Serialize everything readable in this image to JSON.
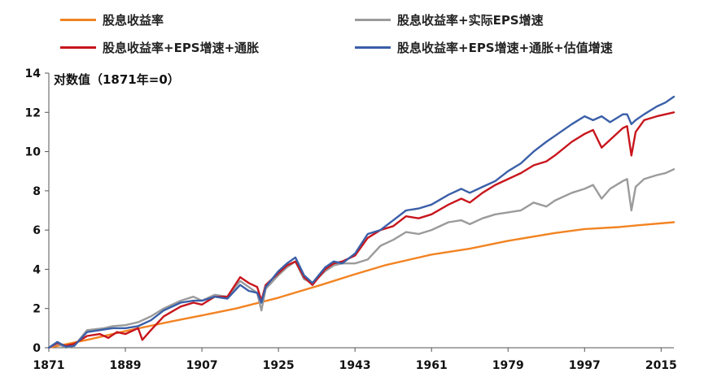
{
  "chart_data": {
    "type": "line",
    "unit_label": "对数值（1871年=0）",
    "xlim": [
      1871,
      2018
    ],
    "ylim": [
      0,
      14
    ],
    "x_ticks": [
      1871,
      1889,
      1907,
      1925,
      1943,
      1961,
      1979,
      1997,
      2015
    ],
    "y_ticks": [
      0,
      2,
      4,
      6,
      8,
      10,
      12,
      14
    ],
    "grid": false,
    "legend_position": "top",
    "series": [
      {
        "name": "股息收益率",
        "color": "#F28322",
        "points": [
          [
            1871,
            0
          ],
          [
            1880,
            0.4
          ],
          [
            1889,
            0.85
          ],
          [
            1900,
            1.35
          ],
          [
            1907,
            1.65
          ],
          [
            1915,
            2.0
          ],
          [
            1925,
            2.55
          ],
          [
            1935,
            3.2
          ],
          [
            1943,
            3.75
          ],
          [
            1950,
            4.2
          ],
          [
            1961,
            4.75
          ],
          [
            1970,
            5.05
          ],
          [
            1979,
            5.45
          ],
          [
            1990,
            5.85
          ],
          [
            1997,
            6.05
          ],
          [
            2005,
            6.15
          ],
          [
            2010,
            6.25
          ],
          [
            2018,
            6.4
          ]
        ]
      },
      {
        "name": "股息收益率+实际EPS增速",
        "color": "#9B9B9B",
        "points": [
          [
            1871,
            0
          ],
          [
            1873,
            0.2
          ],
          [
            1875,
            0.0
          ],
          [
            1877,
            0.1
          ],
          [
            1880,
            0.9
          ],
          [
            1884,
            1.0
          ],
          [
            1886,
            1.1
          ],
          [
            1889,
            1.15
          ],
          [
            1892,
            1.3
          ],
          [
            1895,
            1.6
          ],
          [
            1898,
            2.0
          ],
          [
            1902,
            2.4
          ],
          [
            1905,
            2.6
          ],
          [
            1907,
            2.4
          ],
          [
            1910,
            2.7
          ],
          [
            1913,
            2.6
          ],
          [
            1916,
            3.4
          ],
          [
            1918,
            3.1
          ],
          [
            1920,
            2.8
          ],
          [
            1921,
            1.9
          ],
          [
            1922,
            3.0
          ],
          [
            1925,
            3.7
          ],
          [
            1927,
            4.1
          ],
          [
            1929,
            4.4
          ],
          [
            1931,
            3.5
          ],
          [
            1933,
            3.3
          ],
          [
            1936,
            3.9
          ],
          [
            1938,
            4.2
          ],
          [
            1940,
            4.3
          ],
          [
            1943,
            4.3
          ],
          [
            1946,
            4.5
          ],
          [
            1949,
            5.2
          ],
          [
            1952,
            5.5
          ],
          [
            1955,
            5.9
          ],
          [
            1958,
            5.8
          ],
          [
            1961,
            6.0
          ],
          [
            1965,
            6.4
          ],
          [
            1968,
            6.5
          ],
          [
            1970,
            6.3
          ],
          [
            1973,
            6.6
          ],
          [
            1976,
            6.8
          ],
          [
            1979,
            6.9
          ],
          [
            1982,
            7.0
          ],
          [
            1985,
            7.4
          ],
          [
            1988,
            7.2
          ],
          [
            1990,
            7.5
          ],
          [
            1994,
            7.9
          ],
          [
            1997,
            8.1
          ],
          [
            1999,
            8.3
          ],
          [
            2001,
            7.6
          ],
          [
            2003,
            8.1
          ],
          [
            2006,
            8.5
          ],
          [
            2007,
            8.6
          ],
          [
            2008,
            7.0
          ],
          [
            2009,
            8.2
          ],
          [
            2011,
            8.6
          ],
          [
            2014,
            8.8
          ],
          [
            2016,
            8.9
          ],
          [
            2018,
            9.1
          ]
        ]
      },
      {
        "name": "股息收益率+EPS增速+通胀",
        "color": "#C8161D",
        "points": [
          [
            1871,
            0
          ],
          [
            1873,
            0.25
          ],
          [
            1875,
            0.1
          ],
          [
            1877,
            0.2
          ],
          [
            1880,
            0.6
          ],
          [
            1883,
            0.7
          ],
          [
            1885,
            0.5
          ],
          [
            1887,
            0.8
          ],
          [
            1889,
            0.7
          ],
          [
            1892,
            1.0
          ],
          [
            1893,
            0.4
          ],
          [
            1895,
            0.9
          ],
          [
            1898,
            1.6
          ],
          [
            1902,
            2.1
          ],
          [
            1905,
            2.3
          ],
          [
            1907,
            2.2
          ],
          [
            1910,
            2.6
          ],
          [
            1913,
            2.6
          ],
          [
            1916,
            3.6
          ],
          [
            1918,
            3.3
          ],
          [
            1920,
            3.1
          ],
          [
            1921,
            2.4
          ],
          [
            1922,
            3.2
          ],
          [
            1925,
            3.8
          ],
          [
            1927,
            4.2
          ],
          [
            1929,
            4.4
          ],
          [
            1931,
            3.6
          ],
          [
            1933,
            3.2
          ],
          [
            1936,
            4.0
          ],
          [
            1938,
            4.3
          ],
          [
            1940,
            4.4
          ],
          [
            1943,
            4.7
          ],
          [
            1946,
            5.6
          ],
          [
            1949,
            6.0
          ],
          [
            1952,
            6.2
          ],
          [
            1955,
            6.7
          ],
          [
            1958,
            6.6
          ],
          [
            1961,
            6.8
          ],
          [
            1965,
            7.3
          ],
          [
            1968,
            7.6
          ],
          [
            1970,
            7.4
          ],
          [
            1973,
            7.9
          ],
          [
            1976,
            8.3
          ],
          [
            1979,
            8.6
          ],
          [
            1982,
            8.9
          ],
          [
            1985,
            9.3
          ],
          [
            1988,
            9.5
          ],
          [
            1990,
            9.8
          ],
          [
            1994,
            10.5
          ],
          [
            1997,
            10.9
          ],
          [
            1999,
            11.1
          ],
          [
            2001,
            10.2
          ],
          [
            2003,
            10.6
          ],
          [
            2006,
            11.2
          ],
          [
            2007,
            11.3
          ],
          [
            2008,
            9.8
          ],
          [
            2009,
            11.0
          ],
          [
            2011,
            11.6
          ],
          [
            2014,
            11.8
          ],
          [
            2016,
            11.9
          ],
          [
            2018,
            12.0
          ]
        ]
      },
      {
        "name": "股息收益率+EPS增速+通胀+估值增速",
        "color": "#3A5FA8",
        "points": [
          [
            1871,
            0
          ],
          [
            1873,
            0.3
          ],
          [
            1875,
            0.05
          ],
          [
            1877,
            0.1
          ],
          [
            1880,
            0.8
          ],
          [
            1883,
            0.9
          ],
          [
            1886,
            1.0
          ],
          [
            1889,
            1.0
          ],
          [
            1892,
            1.1
          ],
          [
            1895,
            1.4
          ],
          [
            1898,
            1.9
          ],
          [
            1902,
            2.3
          ],
          [
            1905,
            2.4
          ],
          [
            1907,
            2.4
          ],
          [
            1910,
            2.6
          ],
          [
            1913,
            2.5
          ],
          [
            1916,
            3.2
          ],
          [
            1918,
            2.9
          ],
          [
            1920,
            2.8
          ],
          [
            1921,
            2.3
          ],
          [
            1922,
            3.1
          ],
          [
            1925,
            3.9
          ],
          [
            1927,
            4.3
          ],
          [
            1929,
            4.6
          ],
          [
            1931,
            3.7
          ],
          [
            1933,
            3.3
          ],
          [
            1936,
            4.1
          ],
          [
            1938,
            4.4
          ],
          [
            1940,
            4.3
          ],
          [
            1943,
            4.8
          ],
          [
            1946,
            5.8
          ],
          [
            1949,
            6.0
          ],
          [
            1952,
            6.5
          ],
          [
            1955,
            7.0
          ],
          [
            1958,
            7.1
          ],
          [
            1961,
            7.3
          ],
          [
            1965,
            7.8
          ],
          [
            1968,
            8.1
          ],
          [
            1970,
            7.9
          ],
          [
            1973,
            8.2
          ],
          [
            1976,
            8.5
          ],
          [
            1979,
            9.0
          ],
          [
            1982,
            9.4
          ],
          [
            1985,
            10.0
          ],
          [
            1988,
            10.5
          ],
          [
            1990,
            10.8
          ],
          [
            1994,
            11.4
          ],
          [
            1997,
            11.8
          ],
          [
            1999,
            11.6
          ],
          [
            2001,
            11.8
          ],
          [
            2003,
            11.5
          ],
          [
            2006,
            11.9
          ],
          [
            2007,
            11.9
          ],
          [
            2008,
            11.4
          ],
          [
            2009,
            11.6
          ],
          [
            2011,
            11.9
          ],
          [
            2014,
            12.3
          ],
          [
            2016,
            12.5
          ],
          [
            2018,
            12.8
          ]
        ]
      }
    ]
  }
}
